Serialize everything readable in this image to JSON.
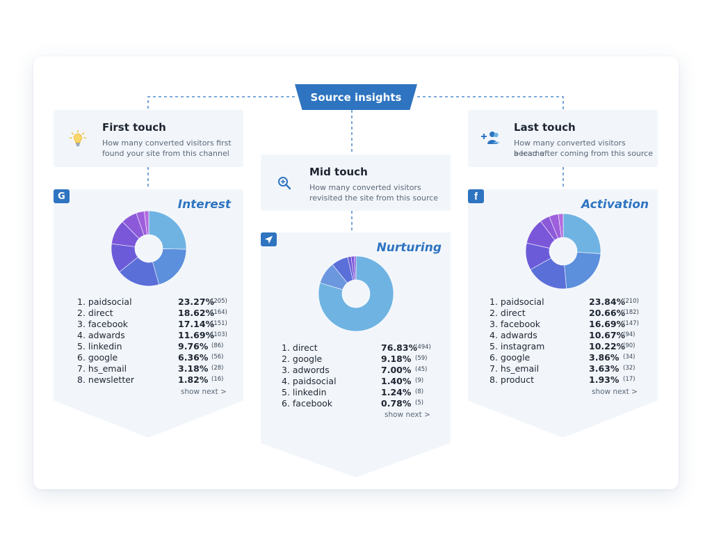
{
  "banner": {
    "label": "Source insights"
  },
  "first_touch": {
    "title": "First touch",
    "description_line1": "How many converted visitors first",
    "description_line2": "found your site from this channel"
  },
  "mid_touch": {
    "title": "Mid touch",
    "description_line1": "How many converted visitors",
    "description_line2": "revisited the site from this source"
  },
  "last_touch": {
    "title": "Last touch",
    "description_line1": "How many converted visitors became",
    "description_line2": "a lead after coming from this source"
  },
  "panels": {
    "interest": {
      "badge": "G",
      "badge_icon": "google-icon",
      "title": "Interest",
      "show_next": "show next >",
      "rows": [
        {
          "label": "1. paidsocial",
          "pct": "23.27%",
          "count": "(205)"
        },
        {
          "label": "2. direct",
          "pct": "18.62%",
          "count": "(164)"
        },
        {
          "label": "3. facebook",
          "pct": "17.14%",
          "count": "(151)"
        },
        {
          "label": "4. adwards",
          "pct": "11.69%",
          "count": "(103)"
        },
        {
          "label": "5. linkedin",
          "pct": "9.76%",
          "count": "(86)"
        },
        {
          "label": "6. google",
          "pct": "6.36%",
          "count": "(56)"
        },
        {
          "label": "7. hs_email",
          "pct": "3.18%",
          "count": "(28)"
        },
        {
          "label": "8. newsletter",
          "pct": "1.82%",
          "count": "(16)"
        }
      ]
    },
    "nurturing": {
      "badge": "",
      "badge_icon": "paper-plane-icon",
      "title": "Nurturing",
      "show_next": "show next >",
      "rows": [
        {
          "label": "1. direct",
          "pct": "76.83%",
          "count": "(494)"
        },
        {
          "label": "2. google",
          "pct": "9.18%",
          "count": "(59)"
        },
        {
          "label": "3. adwords",
          "pct": "7.00%",
          "count": "(45)"
        },
        {
          "label": "4. paidsocial",
          "pct": "1.40%",
          "count": "(9)"
        },
        {
          "label": "5. linkedin",
          "pct": "1.24%",
          "count": "(8)"
        },
        {
          "label": "6. facebook",
          "pct": "0.78%",
          "count": "(5)"
        }
      ]
    },
    "activation": {
      "badge": "f",
      "badge_icon": "facebook-icon",
      "title": "Activation",
      "show_next": "show next >",
      "rows": [
        {
          "label": "1. paidsocial",
          "pct": "23.84%",
          "count": "(210)"
        },
        {
          "label": "2. direct",
          "pct": "20.66%",
          "count": "(182)"
        },
        {
          "label": "3. facebook",
          "pct": "16.69%",
          "count": "(147)"
        },
        {
          "label": "4. adwards",
          "pct": "10.67%",
          "count": "(94)"
        },
        {
          "label": "5. instagram",
          "pct": "10.22%",
          "count": "(90)"
        },
        {
          "label": "6. google",
          "pct": "3.86%",
          "count": "(34)"
        },
        {
          "label": "7. hs_email",
          "pct": "3.63%",
          "count": "(32)"
        },
        {
          "label": "8. product",
          "pct": "1.93%",
          "count": "(17)"
        }
      ]
    }
  },
  "icons": {
    "first_touch": "lightbulb-icon",
    "mid_touch": "magnifier-plus-icon",
    "last_touch": "add-user-icon"
  },
  "colors": {
    "brand_blue": "#2e74c0",
    "panel_bg": "#f2f6fb",
    "slice_palette": [
      "#6fb3e3",
      "#5c8fdc",
      "#5b6fd8",
      "#6c5bd9",
      "#7a56d8",
      "#8c5ad9",
      "#9d5fdb",
      "#b46ddf"
    ]
  },
  "chart_data": [
    {
      "type": "pie",
      "title": "Interest",
      "categories": [
        "paidsocial",
        "direct",
        "facebook",
        "adwards",
        "linkedin",
        "google",
        "hs_email",
        "newsletter"
      ],
      "values": [
        23.27,
        18.62,
        17.14,
        11.69,
        9.76,
        6.36,
        3.18,
        1.82
      ],
      "counts": [
        205,
        164,
        151,
        103,
        86,
        56,
        28,
        16
      ]
    },
    {
      "type": "pie",
      "title": "Nurturing",
      "categories": [
        "direct",
        "google",
        "adwords",
        "paidsocial",
        "linkedin",
        "facebook"
      ],
      "values": [
        76.83,
        9.18,
        7.0,
        1.4,
        1.24,
        0.78
      ],
      "counts": [
        494,
        59,
        45,
        9,
        8,
        5
      ]
    },
    {
      "type": "pie",
      "title": "Activation",
      "categories": [
        "paidsocial",
        "direct",
        "facebook",
        "adwards",
        "instagram",
        "google",
        "hs_email",
        "product"
      ],
      "values": [
        23.84,
        20.66,
        16.69,
        10.67,
        10.22,
        3.86,
        3.63,
        1.93
      ],
      "counts": [
        210,
        182,
        147,
        94,
        90,
        34,
        32,
        17
      ]
    }
  ]
}
